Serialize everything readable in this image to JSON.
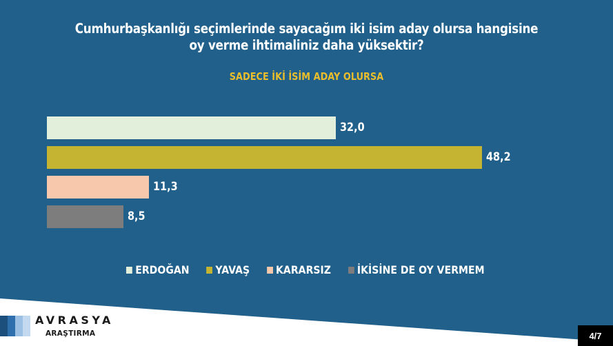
{
  "header": {
    "title_line1": "Cumhurbaşkanlığı seçimlerinde sayacağım iki isim aday olursa hangisine",
    "title_line2": "oy verme ihtimaliniz daha yüksektir?",
    "subtitle": "SADECE İKİ İSİM ADAY OLURSA"
  },
  "colors": {
    "background": "#20608a",
    "subtitle": "#e9bd2c",
    "erdogan": "#e2efdb",
    "yavas": "#c4b432",
    "kararsiz": "#f7c8ab",
    "ikisine_de_oy_vermem": "#7d7d7d"
  },
  "chart_data": {
    "type": "bar",
    "orientation": "horizontal",
    "title": "Cumhurbaşkanlığı seçimlerinde sayacağım iki isim aday olursa hangisine oy verme ihtimaliniz daha yüksektir?",
    "subtitle": "SADECE İKİ İSİM ADAY OLURSA",
    "categories": [
      "ERDOĞAN",
      "YAVAŞ",
      "KARARSIZ",
      "İKİSİNE DE OY VERMEM"
    ],
    "values": [
      32.0,
      48.2,
      11.3,
      8.5
    ],
    "value_labels": [
      "32,0",
      "48,2",
      "11,3",
      "8,5"
    ],
    "colors": [
      "#e2efdb",
      "#c4b432",
      "#f7c8ab",
      "#7d7d7d"
    ],
    "xlabel": "",
    "ylabel": "",
    "grid": false,
    "legend_position": "bottom",
    "axis_visible": false
  },
  "legend": [
    {
      "label": "ERDOĞAN"
    },
    {
      "label": "YAVAŞ"
    },
    {
      "label": "KARARSIZ"
    },
    {
      "label": "İKİSİNE DE OY VERMEM"
    }
  ],
  "branding": {
    "name": "AVRASYA",
    "sub": "ARAŞTIRMA",
    "stripe_colors": [
      "#1d4f7c",
      "#2f6fae",
      "#9cc0e4",
      "#c3d9ef"
    ]
  },
  "pager": {
    "label": "4/7"
  }
}
